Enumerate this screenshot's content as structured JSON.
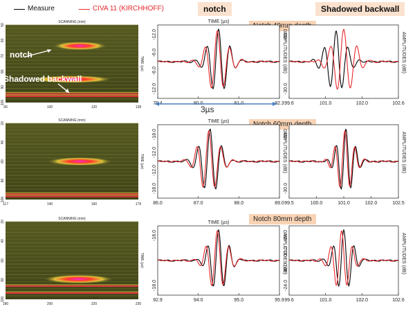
{
  "legend": {
    "measure_label": "Measure",
    "civa_label": "CIVA 11 (KIRCHHOFF)",
    "measure_color": "#000000",
    "civa_color": "#e8262a"
  },
  "headers": {
    "notch": "notch",
    "backwall": "Shadowed backwall"
  },
  "scan_label": "SCANNING (mm)",
  "scan_axis": "TIME (µs)",
  "annotations": {
    "notch": "notch",
    "backwall": "Shadowed backwall",
    "delta": "3µs"
  },
  "scans": [
    {
      "xticks": [
        "90",
        "100",
        "120",
        "128"
      ],
      "yticks": [
        "50",
        "60",
        "70",
        "80",
        "90",
        "100"
      ]
    },
    {
      "xticks": [
        "117",
        "140",
        "160",
        "179"
      ],
      "yticks": [
        "20",
        "40",
        "60",
        "80",
        "100"
      ]
    },
    {
      "xticks": [
        "180",
        "200",
        "220",
        "230"
      ],
      "yticks": [
        "20",
        "40",
        "60",
        "80",
        "100"
      ]
    }
  ],
  "chart_data": [
    {
      "type": "line",
      "group": "Notch 40mm depth",
      "panel": "notch",
      "xlabel": "TIME (µs)",
      "ylabel": "AMPLITUDES (dB)",
      "xticks": [
        "79.4",
        "80.0",
        "81.0",
        "82.3"
      ],
      "yticks": [
        "-12.0",
        "-6.0",
        "-6.0",
        "-12.0"
      ],
      "series": [
        {
          "name": "Measure",
          "center": 0.5,
          "width": 0.075,
          "amp": 0.95
        },
        {
          "name": "CIVA 11 (KIRCHHOFF)",
          "center": 0.49,
          "width": 0.08,
          "amp": 0.9
        }
      ]
    },
    {
      "type": "line",
      "group": "Notch 40mm depth",
      "panel": "backwall",
      "xlabel": "",
      "ylabel": "AMPLITUDES (dB)",
      "xticks": [
        "99.6",
        "101.0",
        "102.0",
        "102.6"
      ],
      "yticks": [
        "-30.0",
        "-30.0"
      ],
      "series": [
        {
          "name": "Measure",
          "center": 0.43,
          "width": 0.085,
          "amp": 0.9
        },
        {
          "name": "CIVA 11 (KIRCHHOFF)",
          "center": 0.5,
          "width": 0.095,
          "amp": 0.95
        }
      ]
    },
    {
      "type": "line",
      "group": "Notch 60mm depth",
      "panel": "notch",
      "xlabel": "TIME (µs)",
      "ylabel": "AMPLITUDES (dB)",
      "xticks": [
        "86.0",
        "87.0",
        "88.0",
        "89.0"
      ],
      "yticks": [
        "-18.0",
        "-12.0",
        "-12.0",
        "-18.0"
      ],
      "series": [
        {
          "name": "Measure",
          "center": 0.43,
          "width": 0.075,
          "amp": 0.95
        },
        {
          "name": "CIVA 11 (KIRCHHOFF)",
          "center": 0.42,
          "width": 0.078,
          "amp": 0.9
        }
      ]
    },
    {
      "type": "line",
      "group": "Notch 60mm depth",
      "panel": "backwall",
      "xlabel": "",
      "ylabel": "AMPLITUDES (dB)",
      "xticks": [
        "99.5",
        "100.0",
        "101.0",
        "102.0",
        "102.5"
      ],
      "yticks": [
        "-30.0",
        "-30.0"
      ],
      "series": [
        {
          "name": "Measure",
          "center": 0.52,
          "width": 0.07,
          "amp": 0.95
        },
        {
          "name": "CIVA 11 (KIRCHHOFF)",
          "center": 0.51,
          "width": 0.072,
          "amp": 0.9
        }
      ]
    },
    {
      "type": "line",
      "group": "Notch 80mm depth",
      "panel": "notch",
      "xlabel": "TIME (µs)",
      "ylabel": "AMPLITUDES (dB)",
      "xticks": [
        "92.9",
        "94.0",
        "95.0",
        "95.9"
      ],
      "yticks": [
        "-18.0",
        "-18.0"
      ],
      "series": [
        {
          "name": "Measure",
          "center": 0.5,
          "width": 0.07,
          "amp": 0.95
        },
        {
          "name": "CIVA 11 (KIRCHHOFF)",
          "center": 0.49,
          "width": 0.075,
          "amp": 0.92
        }
      ]
    },
    {
      "type": "line",
      "group": "Notch 80mm depth",
      "panel": "backwall",
      "xlabel": "",
      "ylabel": "AMPLITUDES (dB)",
      "xticks": [
        "99.6",
        "101.0",
        "102.0",
        "102.6"
      ],
      "yticks": [
        "-24.0",
        "-30.0",
        "-30.0",
        "-24.0"
      ],
      "series": [
        {
          "name": "Measure",
          "center": 0.5,
          "width": 0.075,
          "amp": 0.95
        },
        {
          "name": "CIVA 11 (KIRCHHOFF)",
          "center": 0.48,
          "width": 0.078,
          "amp": 0.92
        }
      ]
    }
  ]
}
